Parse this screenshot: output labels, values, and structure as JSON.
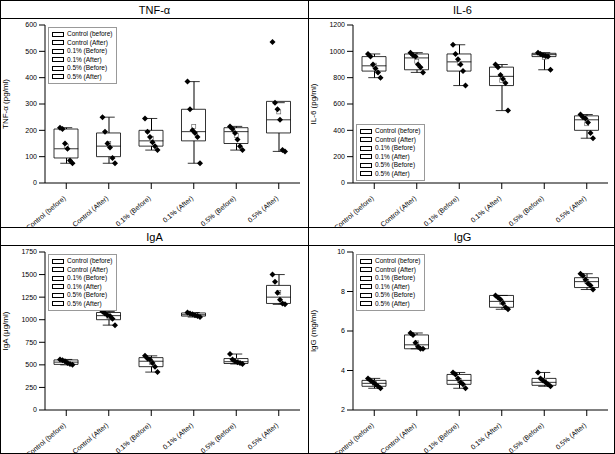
{
  "chart_data": [
    {
      "type": "box",
      "title": "TNF-α",
      "y_label": "TNF-α (pg/ml)",
      "legend": "upper left",
      "grid": false,
      "marker": "diamond",
      "categories": [
        "Control (before)",
        "Control (After)",
        "0.1% (Before)",
        "0.1% (After)",
        "0.5% (Before)",
        "0.5% (After)"
      ],
      "ylim": [
        0,
        600
      ],
      "yticks": [
        0,
        100,
        200,
        300,
        400,
        500,
        600
      ],
      "series": [
        {
          "name": "Control (before)",
          "color": "#ffffff",
          "points": [
            210,
            205,
            150,
            130,
            85,
            75
          ],
          "q1": 95,
          "median": 130,
          "q3": 205,
          "whisker_low": 75,
          "whisker_high": 210,
          "mean": 140
        },
        {
          "name": "Control (After)",
          "color": "#ffffff",
          "points": [
            250,
            195,
            150,
            135,
            95,
            75
          ],
          "q1": 100,
          "median": 140,
          "q3": 190,
          "whisker_low": 75,
          "whisker_high": 250,
          "mean": 150
        },
        {
          "name": "0.1% (Before)",
          "color": "#ffffff",
          "points": [
            245,
            195,
            175,
            155,
            140,
            125
          ],
          "q1": 140,
          "median": 160,
          "q3": 200,
          "whisker_low": 125,
          "whisker_high": 245,
          "mean": 170
        },
        {
          "name": "0.1% (After)",
          "color": "#ffffff",
          "points": [
            385,
            280,
            200,
            190,
            175,
            75
          ],
          "q1": 160,
          "median": 195,
          "q3": 280,
          "whisker_low": 75,
          "whisker_high": 385,
          "mean": 215
        },
        {
          "name": "0.5% (Before)",
          "color": "#ffffff",
          "points": [
            215,
            205,
            190,
            165,
            140,
            125
          ],
          "q1": 150,
          "median": 195,
          "q3": 210,
          "whisker_low": 125,
          "whisker_high": 215,
          "mean": 180
        },
        {
          "name": "0.5% (After)",
          "color": "#ffffff",
          "points": [
            535,
            305,
            280,
            240,
            125,
            120
          ],
          "q1": 190,
          "median": 240,
          "q3": 310,
          "whisker_low": 120,
          "whisker_high": 305,
          "mean": 270
        }
      ]
    },
    {
      "type": "box",
      "title": "IL-6",
      "y_label": "IL-6 (pg/ml)",
      "legend": "lower left",
      "grid": false,
      "marker": "diamond",
      "categories": [
        "Control (before)",
        "Control (After)",
        "0.1% (Before)",
        "0.1% (After)",
        "0.5% (Before)",
        "0.5% (After)"
      ],
      "ylim": [
        0,
        1200
      ],
      "yticks": [
        0,
        200,
        400,
        600,
        800,
        1000,
        1200
      ],
      "series": [
        {
          "name": "Control (before)",
          "color": "#ffffff",
          "points": [
            980,
            960,
            900,
            870,
            840,
            800
          ],
          "q1": 850,
          "median": 890,
          "q3": 960,
          "whisker_low": 800,
          "whisker_high": 980,
          "mean": 895
        },
        {
          "name": "Control (After)",
          "color": "#ffffff",
          "points": [
            990,
            970,
            960,
            900,
            880,
            840
          ],
          "q1": 860,
          "median": 950,
          "q3": 980,
          "whisker_low": 840,
          "whisker_high": 990,
          "mean": 925
        },
        {
          "name": "0.1% (Before)",
          "color": "#ffffff",
          "points": [
            1050,
            980,
            940,
            900,
            850,
            740
          ],
          "q1": 850,
          "median": 920,
          "q3": 980,
          "whisker_low": 740,
          "whisker_high": 1050,
          "mean": 910
        },
        {
          "name": "0.1% (After)",
          "color": "#ffffff",
          "points": [
            900,
            880,
            820,
            790,
            760,
            550
          ],
          "q1": 740,
          "median": 810,
          "q3": 880,
          "whisker_low": 550,
          "whisker_high": 900,
          "mean": 780
        },
        {
          "name": "0.5% (Before)",
          "color": "#ffffff",
          "points": [
            990,
            980,
            970,
            965,
            960,
            860
          ],
          "q1": 960,
          "median": 975,
          "q3": 985,
          "whisker_low": 860,
          "whisker_high": 990,
          "mean": 955
        },
        {
          "name": "0.5% (After)",
          "color": "#ffffff",
          "points": [
            520,
            500,
            490,
            460,
            380,
            340
          ],
          "q1": 400,
          "median": 480,
          "q3": 510,
          "whisker_low": 340,
          "whisker_high": 520,
          "mean": 450
        }
      ]
    },
    {
      "type": "box",
      "title": "IgA",
      "y_label": "IgA (μg/ml)",
      "legend": "upper left",
      "grid": false,
      "marker": "diamond",
      "categories": [
        "Control (before)",
        "Control (After)",
        "0.1% (Before)",
        "0.1% (After)",
        "0.5% (Before)",
        "0.5% (After)"
      ],
      "ylim": [
        0,
        1750
      ],
      "yticks": [
        0,
        250,
        500,
        750,
        1000,
        1250,
        1500,
        1750
      ],
      "series": [
        {
          "name": "Control (before)",
          "color": "#ffffff",
          "points": [
            560,
            550,
            540,
            520,
            510,
            500
          ],
          "q1": 505,
          "median": 530,
          "q3": 555,
          "whisker_low": 500,
          "whisker_high": 560,
          "mean": 530
        },
        {
          "name": "Control (After)",
          "color": "#ffffff",
          "points": [
            1090,
            1070,
            1050,
            1040,
            1010,
            940
          ],
          "q1": 1000,
          "median": 1045,
          "q3": 1080,
          "whisker_low": 940,
          "whisker_high": 1090,
          "mean": 1035
        },
        {
          "name": "0.1% (Before)",
          "color": "#ffffff",
          "points": [
            600,
            570,
            560,
            520,
            480,
            420
          ],
          "q1": 480,
          "median": 540,
          "q3": 580,
          "whisker_low": 420,
          "whisker_high": 600,
          "mean": 525
        },
        {
          "name": "0.1% (After)",
          "color": "#ffffff",
          "points": [
            1080,
            1070,
            1060,
            1050,
            1040,
            1030
          ],
          "q1": 1040,
          "median": 1055,
          "q3": 1075,
          "whisker_low": 1030,
          "whisker_high": 1080,
          "mean": 1055
        },
        {
          "name": "0.5% (Before)",
          "color": "#ffffff",
          "points": [
            620,
            560,
            540,
            530,
            520,
            510
          ],
          "q1": 515,
          "median": 535,
          "q3": 570,
          "whisker_low": 510,
          "whisker_high": 620,
          "mean": 545
        },
        {
          "name": "0.5% (After)",
          "color": "#ffffff",
          "points": [
            1500,
            1420,
            1300,
            1220,
            1180,
            1170
          ],
          "q1": 1180,
          "median": 1250,
          "q3": 1380,
          "whisker_low": 1170,
          "whisker_high": 1500,
          "mean": 1300
        }
      ]
    },
    {
      "type": "box",
      "title": "IgG",
      "y_label": "IgG (mg/ml)",
      "legend": "upper left",
      "grid": false,
      "marker": "diamond",
      "categories": [
        "Control (before)",
        "Control (After)",
        "0.1% (Before)",
        "0.1% (After)",
        "0.5% (Before)",
        "0.5% (After)"
      ],
      "ylim": [
        2,
        10
      ],
      "yticks": [
        2,
        4,
        6,
        8,
        10
      ],
      "series": [
        {
          "name": "Control (before)",
          "color": "#ffffff",
          "points": [
            3.6,
            3.5,
            3.4,
            3.3,
            3.2,
            3.1
          ],
          "q1": 3.2,
          "median": 3.35,
          "q3": 3.5,
          "whisker_low": 3.1,
          "whisker_high": 3.6,
          "mean": 3.35
        },
        {
          "name": "Control (After)",
          "color": "#ffffff",
          "points": [
            5.9,
            5.8,
            5.4,
            5.2,
            5.1,
            5.1
          ],
          "q1": 5.1,
          "median": 5.3,
          "q3": 5.8,
          "whisker_low": 5.1,
          "whisker_high": 5.9,
          "mean": 5.4
        },
        {
          "name": "0.1% (Before)",
          "color": "#ffffff",
          "points": [
            3.9,
            3.8,
            3.6,
            3.4,
            3.3,
            3.1
          ],
          "q1": 3.3,
          "median": 3.5,
          "q3": 3.8,
          "whisker_low": 3.1,
          "whisker_high": 3.9,
          "mean": 3.5
        },
        {
          "name": "0.1% (After)",
          "color": "#ffffff",
          "points": [
            7.8,
            7.7,
            7.6,
            7.4,
            7.2,
            7.1
          ],
          "q1": 7.2,
          "median": 7.5,
          "q3": 7.8,
          "whisker_low": 7.1,
          "whisker_high": 7.8,
          "mean": 7.45
        },
        {
          "name": "0.5% (Before)",
          "color": "#ffffff",
          "points": [
            3.9,
            3.6,
            3.5,
            3.4,
            3.3,
            3.2
          ],
          "q1": 3.25,
          "median": 3.4,
          "q3": 3.6,
          "whisker_low": 3.2,
          "whisker_high": 3.9,
          "mean": 3.5
        },
        {
          "name": "0.5% (After)",
          "color": "#ffffff",
          "points": [
            8.9,
            8.8,
            8.6,
            8.4,
            8.3,
            8.1
          ],
          "q1": 8.2,
          "median": 8.5,
          "q3": 8.7,
          "whisker_low": 8.1,
          "whisker_high": 8.9,
          "mean": 8.5
        }
      ]
    }
  ]
}
